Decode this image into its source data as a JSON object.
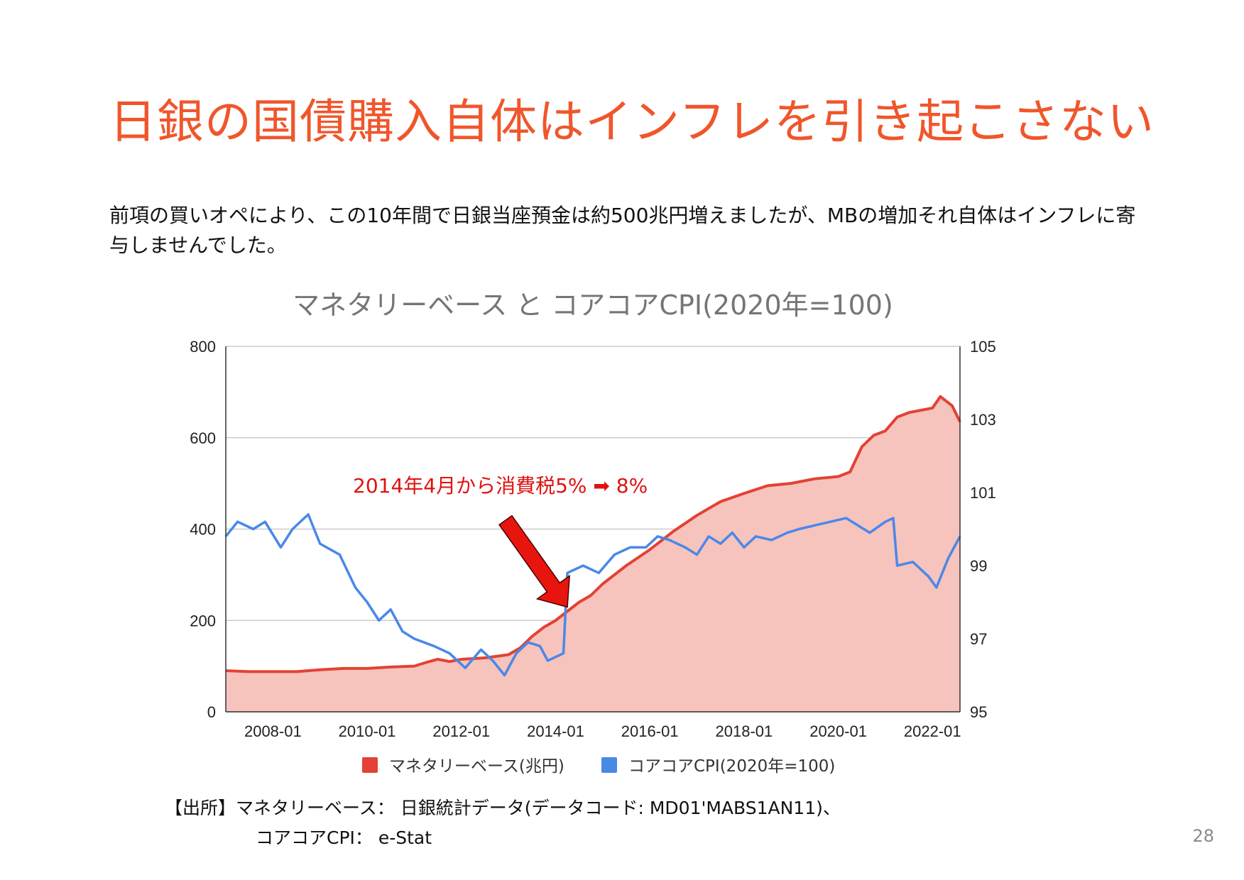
{
  "slide": {
    "title": "日銀の国債購入自体はインフレを引き起こさない",
    "body": "前項の買いオペにより、この10年間で日銀当座預金は約500兆円増えましたが、MBの増加それ自体はインフレに寄与しませんでした。",
    "source_line1": "【出所】マネタリーベース： 日銀統計データ(データコード: MD01'MABS1AN11)、",
    "source_line2": "コアコアCPI： e-Stat",
    "page_number": "28"
  },
  "colors": {
    "title": "#f0562b",
    "mb_line": "#e34234",
    "mb_fill": "#f6c3bd",
    "cpi_line": "#4a88e8",
    "annotation": "#e0120f",
    "arrow": "#e8150f"
  },
  "chart_data": {
    "type": "area",
    "title": "マネタリーベース と コアコアCPI(2020年=100)",
    "x_tick_labels": [
      "2008-01",
      "2010-01",
      "2012-01",
      "2014-01",
      "2016-01",
      "2018-01",
      "2020-01",
      "2022-01"
    ],
    "xlim": [
      "2007-01",
      "2022-08"
    ],
    "y_left": {
      "ticks": [
        "0",
        "200",
        "400",
        "600",
        "800"
      ],
      "ylim": [
        0,
        800
      ]
    },
    "y_right": {
      "ticks": [
        "95",
        "97",
        "99",
        "101",
        "103",
        "105"
      ],
      "ylim": [
        95,
        105
      ]
    },
    "grid": true,
    "legend_position": "bottom",
    "annotation": {
      "text": "2014年4月から消費税5% ➡ 8%",
      "points_to": "2014-04"
    },
    "series": [
      {
        "name": "マネタリーベース(兆円)",
        "axis": "left",
        "style": "area",
        "points": [
          [
            "2007-01",
            90
          ],
          [
            "2007-07",
            88
          ],
          [
            "2008-01",
            88
          ],
          [
            "2008-07",
            88
          ],
          [
            "2009-01",
            92
          ],
          [
            "2009-07",
            95
          ],
          [
            "2010-01",
            95
          ],
          [
            "2010-07",
            98
          ],
          [
            "2011-01",
            100
          ],
          [
            "2011-04",
            108
          ],
          [
            "2011-07",
            115
          ],
          [
            "2011-10",
            110
          ],
          [
            "2012-01",
            115
          ],
          [
            "2012-07",
            118
          ],
          [
            "2013-01",
            125
          ],
          [
            "2013-04",
            140
          ],
          [
            "2013-07",
            165
          ],
          [
            "2013-10",
            185
          ],
          [
            "2014-01",
            200
          ],
          [
            "2014-04",
            220
          ],
          [
            "2014-07",
            240
          ],
          [
            "2014-10",
            255
          ],
          [
            "2015-01",
            280
          ],
          [
            "2015-07",
            320
          ],
          [
            "2016-01",
            355
          ],
          [
            "2016-07",
            395
          ],
          [
            "2017-01",
            430
          ],
          [
            "2017-07",
            460
          ],
          [
            "2018-01",
            478
          ],
          [
            "2018-07",
            495
          ],
          [
            "2019-01",
            500
          ],
          [
            "2019-07",
            510
          ],
          [
            "2020-01",
            515
          ],
          [
            "2020-04",
            525
          ],
          [
            "2020-07",
            580
          ],
          [
            "2020-10",
            605
          ],
          [
            "2021-01",
            615
          ],
          [
            "2021-04",
            645
          ],
          [
            "2021-07",
            655
          ],
          [
            "2021-10",
            660
          ],
          [
            "2022-01",
            665
          ],
          [
            "2022-03",
            690
          ],
          [
            "2022-06",
            670
          ],
          [
            "2022-08",
            635
          ]
        ]
      },
      {
        "name": "コアコアCPI(2020年=100)",
        "axis": "right",
        "style": "line",
        "points": [
          [
            "2007-01",
            99.8
          ],
          [
            "2007-04",
            100.2
          ],
          [
            "2007-08",
            100.0
          ],
          [
            "2007-11",
            100.2
          ],
          [
            "2008-03",
            99.5
          ],
          [
            "2008-06",
            100.0
          ],
          [
            "2008-10",
            100.4
          ],
          [
            "2009-01",
            99.6
          ],
          [
            "2009-06",
            99.3
          ],
          [
            "2009-10",
            98.4
          ],
          [
            "2010-01",
            98.0
          ],
          [
            "2010-04",
            97.5
          ],
          [
            "2010-07",
            97.8
          ],
          [
            "2010-10",
            97.2
          ],
          [
            "2011-01",
            97.0
          ],
          [
            "2011-06",
            96.8
          ],
          [
            "2011-10",
            96.6
          ],
          [
            "2012-02",
            96.2
          ],
          [
            "2012-06",
            96.7
          ],
          [
            "2012-09",
            96.4
          ],
          [
            "2012-12",
            96.0
          ],
          [
            "2013-03",
            96.6
          ],
          [
            "2013-06",
            96.9
          ],
          [
            "2013-09",
            96.8
          ],
          [
            "2013-11",
            96.4
          ],
          [
            "2014-03",
            96.6
          ],
          [
            "2014-04",
            98.8
          ],
          [
            "2014-08",
            99.0
          ],
          [
            "2014-12",
            98.8
          ],
          [
            "2015-04",
            99.3
          ],
          [
            "2015-08",
            99.5
          ],
          [
            "2015-12",
            99.5
          ],
          [
            "2016-03",
            99.8
          ],
          [
            "2016-06",
            99.7
          ],
          [
            "2016-10",
            99.5
          ],
          [
            "2017-01",
            99.3
          ],
          [
            "2017-04",
            99.8
          ],
          [
            "2017-07",
            99.6
          ],
          [
            "2017-10",
            99.9
          ],
          [
            "2018-01",
            99.5
          ],
          [
            "2018-04",
            99.8
          ],
          [
            "2018-08",
            99.7
          ],
          [
            "2018-12",
            99.9
          ],
          [
            "2019-03",
            100.0
          ],
          [
            "2019-07",
            100.1
          ],
          [
            "2019-11",
            100.2
          ],
          [
            "2020-03",
            100.3
          ],
          [
            "2020-06",
            100.1
          ],
          [
            "2020-09",
            99.9
          ],
          [
            "2021-01",
            100.2
          ],
          [
            "2021-03",
            100.3
          ],
          [
            "2021-04",
            99.0
          ],
          [
            "2021-08",
            99.1
          ],
          [
            "2021-12",
            98.7
          ],
          [
            "2022-02",
            98.4
          ],
          [
            "2022-05",
            99.2
          ],
          [
            "2022-08",
            99.8
          ]
        ]
      }
    ]
  }
}
